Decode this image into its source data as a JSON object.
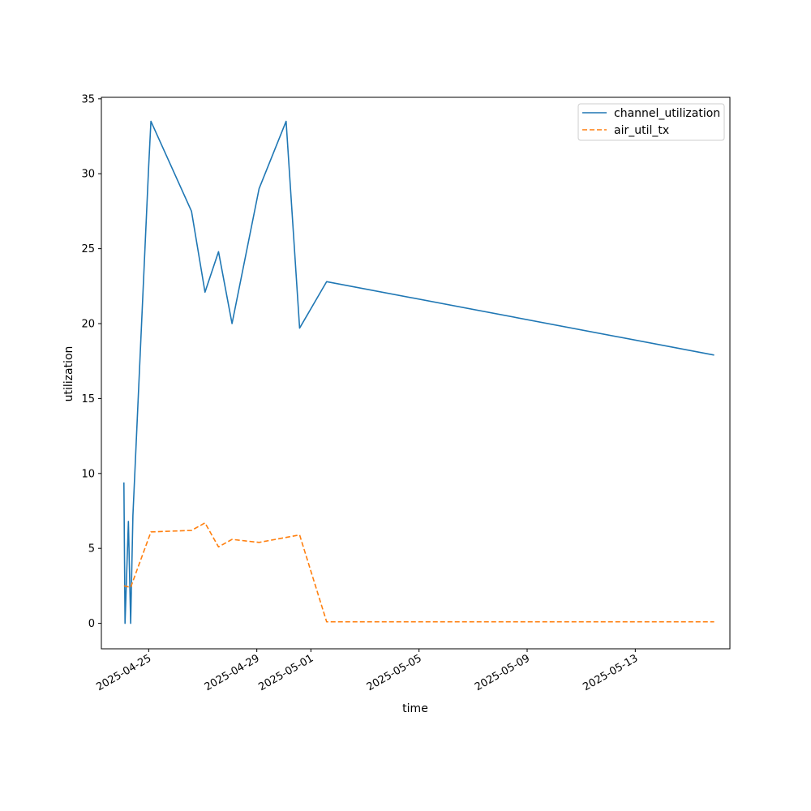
{
  "chart_data": {
    "type": "line",
    "title": "",
    "xlabel": "time",
    "ylabel": "utilization",
    "xlim": [
      "2025-04-23T06:00",
      "2025-05-16T12:00"
    ],
    "ylim": [
      -1.7,
      35.1
    ],
    "xticks": [
      {
        "value": "2025-04-25",
        "label": "2025-04-25"
      },
      {
        "value": "2025-04-29",
        "label": "2025-04-29"
      },
      {
        "value": "2025-05-01",
        "label": "2025-05-01"
      },
      {
        "value": "2025-05-05",
        "label": "2025-05-05"
      },
      {
        "value": "2025-05-09",
        "label": "2025-05-09"
      },
      {
        "value": "2025-05-13",
        "label": "2025-05-13"
      }
    ],
    "yticks": [
      0,
      5,
      10,
      15,
      20,
      25,
      30,
      35
    ],
    "grid": false,
    "legend": "top-right",
    "series": [
      {
        "name": "channel_utilization",
        "color": "#1f77b4",
        "style": "solid",
        "points": [
          {
            "x": "2025-04-24T02:00",
            "y": 9.4
          },
          {
            "x": "2025-04-24T03:00",
            "y": 0.0
          },
          {
            "x": "2025-04-24T06:00",
            "y": 6.8
          },
          {
            "x": "2025-04-24T08:00",
            "y": 0.0
          },
          {
            "x": "2025-04-24T10:00",
            "y": 7.2
          },
          {
            "x": "2025-04-25T00:00",
            "y": 30.5
          },
          {
            "x": "2025-04-25T02:00",
            "y": 33.5
          },
          {
            "x": "2025-04-26T14:00",
            "y": 27.5
          },
          {
            "x": "2025-04-27T02:00",
            "y": 22.1
          },
          {
            "x": "2025-04-27T14:00",
            "y": 24.8
          },
          {
            "x": "2025-04-28T02:00",
            "y": 20.0
          },
          {
            "x": "2025-04-29T02:00",
            "y": 29.0
          },
          {
            "x": "2025-04-30T02:00",
            "y": 33.5
          },
          {
            "x": "2025-04-30T14:00",
            "y": 19.7
          },
          {
            "x": "2025-05-01T14:00",
            "y": 22.8
          },
          {
            "x": "2025-05-15T22:00",
            "y": 17.9
          }
        ]
      },
      {
        "name": "air_util_tx",
        "color": "#ff7f0e",
        "style": "dashed",
        "points": [
          {
            "x": "2025-04-24T02:00",
            "y": 2.5
          },
          {
            "x": "2025-04-24T08:00",
            "y": 2.4
          },
          {
            "x": "2025-04-25T02:00",
            "y": 6.1
          },
          {
            "x": "2025-04-26T14:00",
            "y": 6.2
          },
          {
            "x": "2025-04-27T02:00",
            "y": 6.7
          },
          {
            "x": "2025-04-27T14:00",
            "y": 5.1
          },
          {
            "x": "2025-04-28T02:00",
            "y": 5.6
          },
          {
            "x": "2025-04-29T02:00",
            "y": 5.4
          },
          {
            "x": "2025-04-30T14:00",
            "y": 5.9
          },
          {
            "x": "2025-05-01T14:00",
            "y": 0.1
          },
          {
            "x": "2025-05-15T22:00",
            "y": 0.1
          }
        ]
      }
    ]
  }
}
